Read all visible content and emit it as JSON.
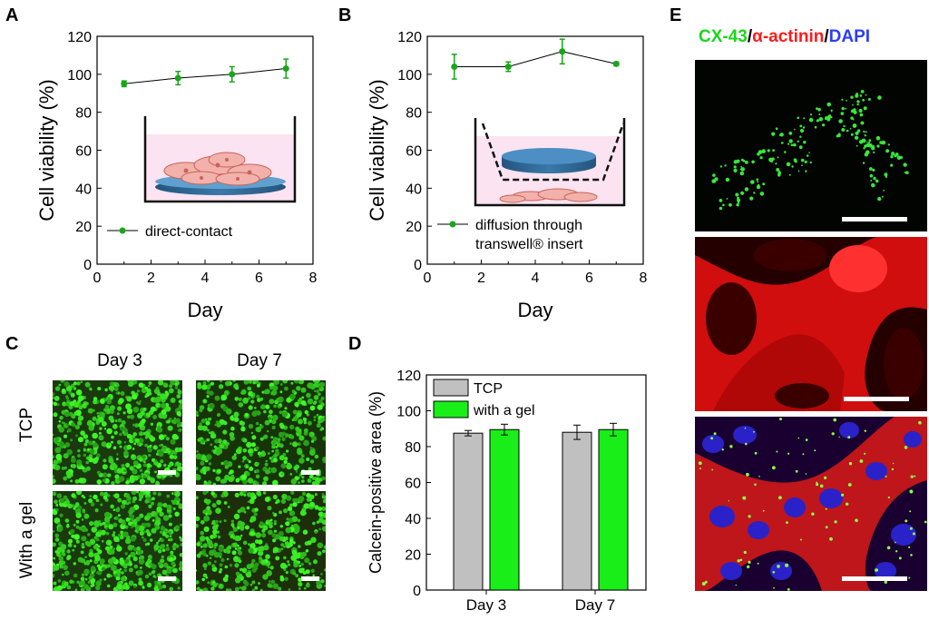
{
  "panels": {
    "a": "A",
    "b": "B",
    "c": "C",
    "d": "D",
    "e": "E"
  },
  "panel_c": {
    "col_labels": [
      "Day 3",
      "Day 7"
    ],
    "row_labels": [
      "TCP",
      "With a gel"
    ]
  },
  "panel_e": {
    "title_parts": [
      {
        "text": "CX-43",
        "color": "#19d619"
      },
      {
        "text": "/",
        "color": "#000000"
      },
      {
        "text": "α-actinin",
        "color": "#ff1a1a"
      },
      {
        "text": "/",
        "color": "#000000"
      },
      {
        "text": "DAPI",
        "color": "#2a3cff"
      }
    ]
  },
  "chart_data": [
    {
      "id": "A",
      "type": "line",
      "xlabel": "Day",
      "ylabel": "Cell viability (%)",
      "xlim": [
        0,
        8
      ],
      "ylim": [
        0,
        120
      ],
      "xticks": [
        0,
        2,
        4,
        6,
        8
      ],
      "yticks": [
        0,
        20,
        40,
        60,
        80,
        100,
        120
      ],
      "series": [
        {
          "name": "direct-contact",
          "x": [
            1,
            3,
            5,
            7
          ],
          "values": [
            95,
            98,
            100,
            103
          ],
          "errors": [
            1.5,
            3.5,
            4,
            5
          ],
          "color": "#1aa51a"
        }
      ]
    },
    {
      "id": "B",
      "type": "line",
      "xlabel": "Day",
      "ylabel": "Cell viability (%)",
      "xlim": [
        0,
        8
      ],
      "ylim": [
        0,
        120
      ],
      "xticks": [
        0,
        2,
        4,
        6,
        8
      ],
      "yticks": [
        0,
        20,
        40,
        60,
        80,
        100,
        120
      ],
      "series": [
        {
          "name": "diffusion through transwell® insert",
          "name_lines": [
            "diffusion through",
            "transwell® insert"
          ],
          "x": [
            1,
            3,
            5,
            7
          ],
          "values": [
            104,
            104,
            112,
            105.5
          ],
          "errors": [
            6.5,
            2.5,
            6.5,
            1
          ],
          "color": "#1aa51a"
        }
      ]
    },
    {
      "id": "D",
      "type": "bar",
      "ylabel": "Calcein-positive area (%)",
      "categories": [
        "Day 3",
        "Day 7"
      ],
      "ylim": [
        0,
        120
      ],
      "yticks": [
        0,
        20,
        40,
        60,
        80,
        100,
        120
      ],
      "series": [
        {
          "name": "TCP",
          "values": [
            87.5,
            88
          ],
          "errors": [
            1.5,
            4
          ],
          "color": "#c0c0c0"
        },
        {
          "name": "with a gel",
          "values": [
            89.5,
            89.5
          ],
          "errors": [
            3,
            3.5
          ],
          "color": "#19ee19"
        }
      ]
    }
  ]
}
